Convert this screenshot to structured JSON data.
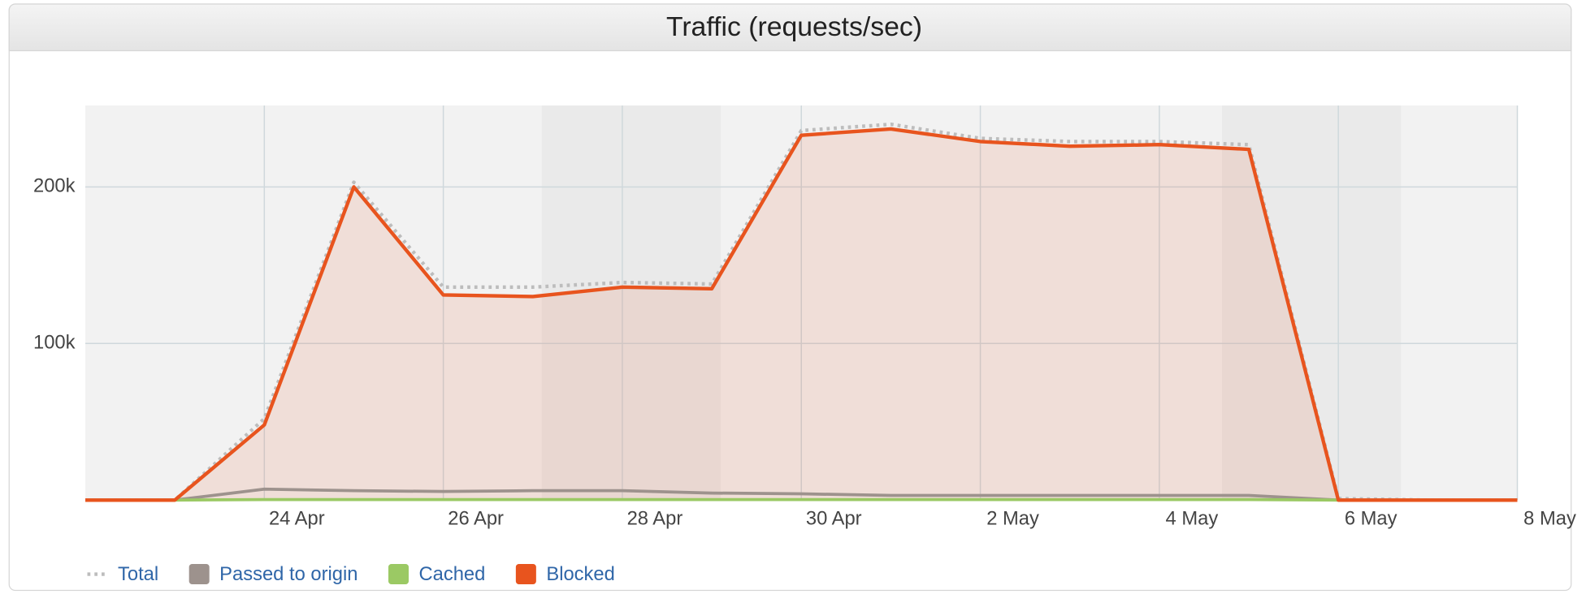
{
  "chart_data": {
    "type": "line",
    "title": "Traffic (requests/sec)",
    "categories": [
      null,
      null,
      "24 Apr",
      null,
      "26 Apr",
      null,
      "28 Apr",
      null,
      "30 Apr",
      null,
      "2 May",
      null,
      "4 May",
      null,
      "6 May",
      null,
      "8 May"
    ],
    "series": [
      {
        "name": "Total",
        "color": "#bdbdbd",
        "values": [
          0,
          0,
          52000,
          203000,
          136000,
          136000,
          139000,
          138000,
          236000,
          240000,
          231000,
          229000,
          229000,
          227000,
          1000,
          0,
          0
        ]
      },
      {
        "name": "Passed to origin",
        "color": "#9d928d",
        "values": [
          0,
          0,
          7000,
          6000,
          5500,
          6000,
          6000,
          4500,
          4000,
          3000,
          3000,
          3000,
          3000,
          3000,
          0,
          0,
          0
        ]
      },
      {
        "name": "Cached",
        "color": "#9bc964",
        "values": [
          0,
          0,
          300,
          300,
          300,
          300,
          300,
          300,
          300,
          300,
          300,
          300,
          300,
          300,
          0,
          0,
          0
        ]
      },
      {
        "name": "Blocked",
        "color": "#e8541e",
        "values": [
          0,
          0,
          48000,
          200000,
          131000,
          130000,
          136000,
          135000,
          233000,
          237000,
          229000,
          226000,
          227000,
          224000,
          0,
          0,
          0
        ]
      }
    ],
    "ylim": [
      0,
      252000
    ],
    "yticks": [
      {
        "value": 100000,
        "label": "100k"
      },
      {
        "value": 200000,
        "label": "200k"
      }
    ],
    "grid": true
  }
}
